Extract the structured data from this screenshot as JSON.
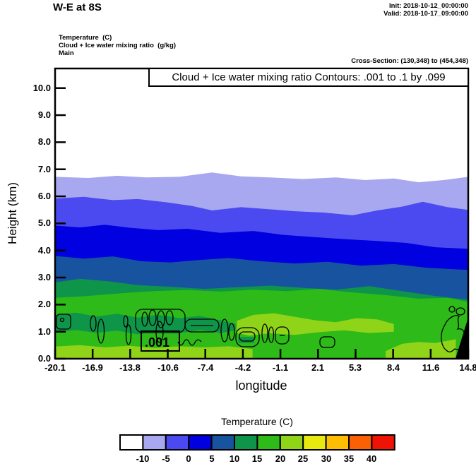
{
  "header": {
    "title": "W-E at 8S",
    "init_line": "Init: 2018-10-12_00:00:00",
    "valid_line": "Valid: 2018-10-17_09:00:00",
    "field_lines": [
      "Temperature  (C)",
      "Cloud + Ice water mixing ratio  (g/kg)",
      "Main"
    ],
    "cross_section": "Cross-Section: (130,348) to (454,348)"
  },
  "plot": {
    "contour_title": "Cloud + Ice water mixing ratio Contours: .001 to .1 by .099",
    "contour_label": ".001",
    "xlabel": "longitude",
    "ylabel": "Height (km)"
  },
  "chart_data": {
    "type": "heatmap",
    "subtype": "filled-contour-vertical-cross-section",
    "title": "Cloud + Ice water mixing ratio Contours: .001 to .1 by .099",
    "xlabel": "longitude",
    "ylabel": "Height (km)",
    "x_range": [
      -20.1,
      14.8
    ],
    "y_range_km": [
      0.0,
      10.7
    ],
    "x_tick_labels": [
      "-20.1",
      "-16.9",
      "-13.8",
      "-10.6",
      "-7.4",
      "-4.2",
      "-1.1",
      "2.1",
      "5.3",
      "8.4",
      "11.6",
      "14.8"
    ],
    "y_tick_labels": [
      "0.0",
      "1.0",
      "2.0",
      "3.0",
      "4.0",
      "5.0",
      "6.0",
      "7.0",
      "8.0",
      "9.0",
      "10.0"
    ],
    "cloud_contour_levels": [
      0.001,
      0.1
    ],
    "colorbar": {
      "title": "Temperature  (C)",
      "tick_labels": [
        "-10",
        "-5",
        "0",
        "5",
        "10",
        "15",
        "20",
        "25",
        "30",
        "35",
        "40"
      ],
      "colors": [
        "#ffffff",
        "#a8a8f0",
        "#4a4af0",
        "#0000e0",
        "#18539f",
        "#0f9549",
        "#2eba18",
        "#8fd419",
        "#e8ea0f",
        "#fdbd03",
        "#fa6004",
        "#ee1305"
      ]
    },
    "temperature_bands": [
      {
        "name": "-10 to -5 C",
        "color": "#a8a8f0",
        "boundary": [
          [
            0,
            6.72
          ],
          [
            0.08,
            6.68
          ],
          [
            0.15,
            6.76
          ],
          [
            0.22,
            6.7
          ],
          [
            0.3,
            6.72
          ],
          [
            0.38,
            6.88
          ],
          [
            0.45,
            6.74
          ],
          [
            0.52,
            6.7
          ],
          [
            0.6,
            6.64
          ],
          [
            0.68,
            6.7
          ],
          [
            0.75,
            6.6
          ],
          [
            0.82,
            6.66
          ],
          [
            0.88,
            6.52
          ],
          [
            0.94,
            6.6
          ],
          [
            1,
            6.72
          ]
        ]
      },
      {
        "name": "-5 to 0 C",
        "color": "#4a4af0",
        "boundary": [
          [
            0,
            5.92
          ],
          [
            0.07,
            5.98
          ],
          [
            0.14,
            5.86
          ],
          [
            0.2,
            5.9
          ],
          [
            0.27,
            5.78
          ],
          [
            0.33,
            5.65
          ],
          [
            0.38,
            5.48
          ],
          [
            0.45,
            5.6
          ],
          [
            0.52,
            5.52
          ],
          [
            0.58,
            5.45
          ],
          [
            0.65,
            5.4
          ],
          [
            0.72,
            5.3
          ],
          [
            0.78,
            5.48
          ],
          [
            0.84,
            5.62
          ],
          [
            0.89,
            5.8
          ],
          [
            0.95,
            5.6
          ],
          [
            1,
            5.5
          ]
        ]
      },
      {
        "name": "0 to 5 C",
        "color": "#0000e0",
        "boundary": [
          [
            0,
            4.92
          ],
          [
            0.06,
            4.85
          ],
          [
            0.12,
            4.95
          ],
          [
            0.18,
            4.84
          ],
          [
            0.25,
            4.75
          ],
          [
            0.32,
            4.8
          ],
          [
            0.4,
            4.65
          ],
          [
            0.48,
            4.72
          ],
          [
            0.55,
            4.58
          ],
          [
            0.62,
            4.5
          ],
          [
            0.7,
            4.42
          ],
          [
            0.78,
            4.35
          ],
          [
            0.85,
            4.28
          ],
          [
            0.92,
            4.12
          ],
          [
            1,
            4.06
          ]
        ]
      },
      {
        "name": "5 to 10 C",
        "color": "#18539f",
        "boundary": [
          [
            0,
            3.8
          ],
          [
            0.07,
            3.7
          ],
          [
            0.14,
            3.78
          ],
          [
            0.21,
            3.6
          ],
          [
            0.28,
            3.56
          ],
          [
            0.35,
            3.65
          ],
          [
            0.42,
            3.72
          ],
          [
            0.5,
            3.6
          ],
          [
            0.58,
            3.52
          ],
          [
            0.66,
            3.58
          ],
          [
            0.74,
            3.44
          ],
          [
            0.82,
            3.5
          ],
          [
            0.9,
            3.36
          ],
          [
            1,
            3.28
          ]
        ]
      },
      {
        "name": "10 to 15 C",
        "color": "#0f9549",
        "boundary": [
          [
            0,
            2.82
          ],
          [
            0.06,
            2.95
          ],
          [
            0.13,
            2.86
          ],
          [
            0.2,
            2.72
          ],
          [
            0.28,
            2.66
          ],
          [
            0.36,
            2.58
          ],
          [
            0.44,
            2.64
          ],
          [
            0.52,
            2.7
          ],
          [
            0.6,
            2.62
          ],
          [
            0.68,
            2.55
          ],
          [
            0.76,
            2.68
          ],
          [
            0.84,
            2.5
          ],
          [
            0.92,
            2.32
          ],
          [
            1,
            2.18
          ]
        ]
      },
      {
        "name": "15 to 20 C",
        "color": "#2eba18",
        "boundary": [
          [
            0,
            2.25
          ],
          [
            0.08,
            2.32
          ],
          [
            0.16,
            2.42
          ],
          [
            0.24,
            2.5
          ],
          [
            0.32,
            2.54
          ],
          [
            0.4,
            2.48
          ],
          [
            0.48,
            2.55
          ],
          [
            0.56,
            2.5
          ],
          [
            0.64,
            2.58
          ],
          [
            0.72,
            2.45
          ],
          [
            0.8,
            2.35
          ],
          [
            0.88,
            2.22
          ],
          [
            0.95,
            2.25
          ],
          [
            1,
            2.1
          ]
        ]
      }
    ],
    "patches": [
      {
        "name": "inversion-layer-10-15C",
        "color": "#0f9549",
        "ring": [
          [
            0,
            1.62
          ],
          [
            0.05,
            1.7
          ],
          [
            0.1,
            1.56
          ],
          [
            0.15,
            1.66
          ],
          [
            0.2,
            1.52
          ],
          [
            0.25,
            1.62
          ],
          [
            0.3,
            1.5
          ],
          [
            0.35,
            1.58
          ],
          [
            0.4,
            1.42
          ],
          [
            0.437,
            1.28
          ],
          [
            0.437,
            1.05
          ],
          [
            0.4,
            0.95
          ],
          [
            0.35,
            1.06
          ],
          [
            0.3,
            0.94
          ],
          [
            0.25,
            1.02
          ],
          [
            0.2,
            0.9
          ],
          [
            0.15,
            1.04
          ],
          [
            0.1,
            0.96
          ],
          [
            0.05,
            1.06
          ],
          [
            0,
            0.98
          ]
        ]
      },
      {
        "name": "warm-tongue-20-25C",
        "color": "#8fd419",
        "ring": [
          [
            0.44,
            1.4
          ],
          [
            0.48,
            1.62
          ],
          [
            0.53,
            1.68
          ],
          [
            0.58,
            1.55
          ],
          [
            0.63,
            1.42
          ],
          [
            0.68,
            1.35
          ],
          [
            0.73,
            1.5
          ],
          [
            0.78,
            1.45
          ],
          [
            0.82,
            1.28
          ],
          [
            0.82,
            1.0
          ],
          [
            0.76,
            0.95
          ],
          [
            0.7,
            1.05
          ],
          [
            0.64,
            0.98
          ],
          [
            0.58,
            0.88
          ],
          [
            0.52,
            0.94
          ],
          [
            0.47,
            0.85
          ],
          [
            0.44,
            0.95
          ]
        ]
      },
      {
        "name": "surface-left-20-25C",
        "color": "#8fd419",
        "ring": [
          [
            0,
            0.45
          ],
          [
            0.06,
            0.5
          ],
          [
            0.12,
            0.42
          ],
          [
            0.18,
            0.48
          ],
          [
            0.24,
            0.4
          ],
          [
            0.3,
            0.46
          ],
          [
            0.36,
            0.42
          ],
          [
            0.42,
            0.46
          ],
          [
            0.478,
            0.36
          ],
          [
            0.478,
            0
          ],
          [
            0,
            0
          ]
        ]
      },
      {
        "name": "surface-right-20-25C",
        "color": "#8fd419",
        "ring": [
          [
            0.8,
            0.28
          ],
          [
            0.84,
            0.55
          ],
          [
            0.88,
            0.62
          ],
          [
            0.92,
            0.58
          ],
          [
            0.97,
            0.72
          ],
          [
            0.97,
            0
          ],
          [
            0.8,
            0
          ]
        ]
      },
      {
        "name": "cloud-top-patch-10-15C",
        "color": "#0f9549",
        "ring": [
          [
            0.443,
            0.8
          ],
          [
            0.482,
            0.8
          ],
          [
            0.482,
            0.58
          ],
          [
            0.443,
            0.58
          ]
        ]
      }
    ],
    "terrain": [
      [
        0.969,
        0
      ],
      [
        1,
        0
      ],
      [
        1,
        1.52
      ]
    ]
  }
}
